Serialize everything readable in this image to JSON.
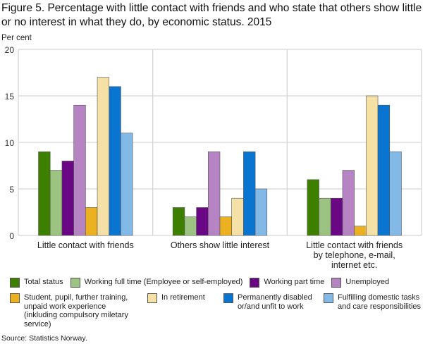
{
  "title": "Figure 5. Percentage with little contact with friends and who state that others show little or no interest in what they do, by economic status. 2015",
  "source": "Source: Statistics Norway.",
  "chart_data": {
    "type": "bar",
    "ylabel": "Per cent",
    "ylim": [
      0,
      20
    ],
    "yticks": [
      "0",
      "5",
      "10",
      "15",
      "20"
    ],
    "grid": true,
    "legend_position": "bottom",
    "categories": [
      "Little contact with friends",
      "Others show little interest",
      "Little contact with friends by telephone, e-mail, internet etc."
    ],
    "series": [
      {
        "name": "Total status",
        "color": "#3d8000",
        "values": [
          9,
          3,
          6
        ]
      },
      {
        "name": "Working full time (Employee or self-employed)",
        "color": "#9dc383",
        "values": [
          7,
          2,
          4
        ]
      },
      {
        "name": "Working part time",
        "color": "#6a0785",
        "values": [
          8,
          3,
          4
        ]
      },
      {
        "name": "Unemployed",
        "color": "#b683c3",
        "values": [
          14,
          9,
          7
        ]
      },
      {
        "name": "Student, pupil, further training, unpaid work experience (inkluding compulsory miletary service)",
        "color": "#ebb120",
        "values": [
          3,
          2,
          1
        ]
      },
      {
        "name": "In retirement",
        "color": "#f5e0a6",
        "values": [
          17,
          4,
          15
        ]
      },
      {
        "name": "Permanently disabled or/and unfit to work",
        "color": "#0a74d1",
        "values": [
          16,
          9,
          14
        ]
      },
      {
        "name": "Fulfilling domestic tasks and care responsibilities",
        "color": "#83b9e7",
        "values": [
          11,
          5,
          9
        ]
      }
    ]
  }
}
